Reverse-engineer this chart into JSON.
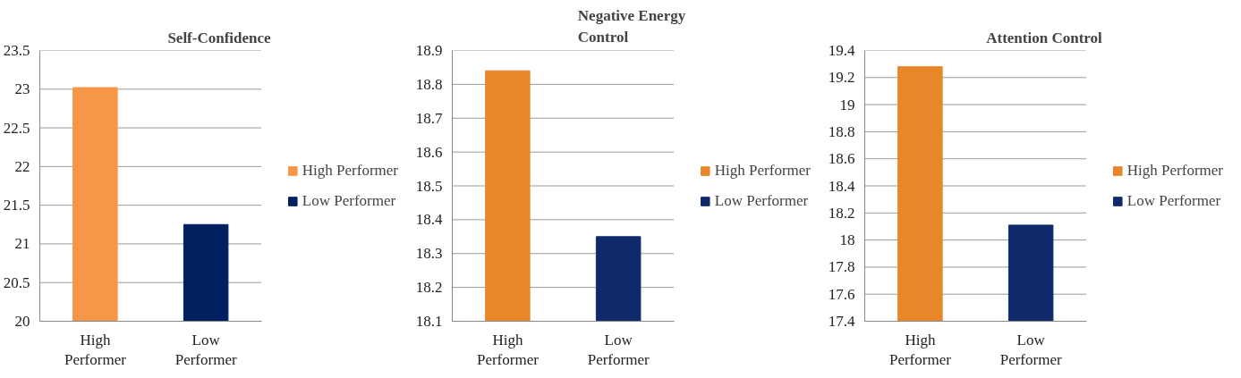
{
  "chart_data": [
    {
      "type": "bar",
      "title": "Self-Confidence",
      "categories": [
        "High Performer",
        "Low Performer"
      ],
      "series": [
        {
          "name": "High Performer",
          "color": "#f79646",
          "values": [
            23.02,
            null
          ]
        },
        {
          "name": "Low Performer",
          "color": "#002060",
          "values": [
            null,
            21.25
          ]
        }
      ],
      "ylim": [
        20,
        23.5
      ],
      "yticks": [
        20,
        {
          "value": 20.5,
          "label": "20.5"
        },
        21,
        {
          "value": 21.5,
          "label": "21.5"
        },
        22,
        {
          "value": 22.5,
          "label": "22.5"
        },
        23,
        {
          "value": 23.5,
          "label": "23.5"
        }
      ],
      "grid": "y",
      "legend": "right"
    },
    {
      "type": "bar",
      "title": "Negative Energy Control",
      "categories": [
        "High Performer",
        "Low Performer"
      ],
      "series": [
        {
          "name": "High Performer",
          "color": "#e8862a",
          "values": [
            18.84,
            null
          ]
        },
        {
          "name": "Low Performer",
          "color": "#0f2a6b",
          "values": [
            null,
            18.35
          ]
        }
      ],
      "ylim": [
        18.1,
        18.9
      ],
      "yticks": [
        18.1,
        18.2,
        18.3,
        18.4,
        18.5,
        18.6,
        18.7,
        18.8,
        18.9
      ],
      "grid": "y",
      "legend": "right"
    },
    {
      "type": "bar",
      "title": "Attention Control",
      "categories": [
        "High Performer",
        "Low Performer"
      ],
      "series": [
        {
          "name": "High Performer",
          "color": "#e8862a",
          "values": [
            19.28,
            null
          ]
        },
        {
          "name": "Low Performer",
          "color": "#0f2a6b",
          "values": [
            null,
            18.11
          ]
        }
      ],
      "ylim": [
        17.4,
        19.4
      ],
      "yticks": [
        17.4,
        17.6,
        17.8,
        18,
        18.2,
        18.4,
        18.6,
        18.8,
        19,
        19.2,
        19.4
      ],
      "grid": "y",
      "legend": "right"
    }
  ]
}
